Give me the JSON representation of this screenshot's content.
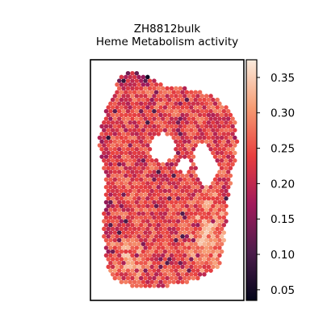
{
  "chart_data": {
    "type": "heatmap",
    "plot_kind": "spatial hexagonal spot map",
    "title": "ZH8812bulk",
    "subtitle": "Heme Metabolism activity",
    "xlabel": "",
    "ylabel": "",
    "axes_ticks_visible": false,
    "grid": false,
    "colormap": "rocket",
    "colormap_stops": [
      "#03051a",
      "#4c1d4b",
      "#a11a5b",
      "#e83f3f",
      "#f69c73",
      "#faebdd"
    ],
    "colorbar": {
      "position": "right",
      "range": [
        0.035,
        0.375
      ],
      "ticks": [
        0.05,
        0.1,
        0.15,
        0.2,
        0.25,
        0.3,
        0.35
      ],
      "tick_labels": [
        "0.05",
        "0.10",
        "0.15",
        "0.20",
        "0.25",
        "0.30",
        "0.35"
      ]
    },
    "value_regions": [
      {
        "region": "tissue overall",
        "typical_value": 0.24
      },
      {
        "region": "top rim",
        "typical_value": 0.17
      },
      {
        "region": "lower right lobe",
        "typical_value": 0.31
      },
      {
        "region": "bottom left",
        "typical_value": 0.3
      }
    ]
  }
}
